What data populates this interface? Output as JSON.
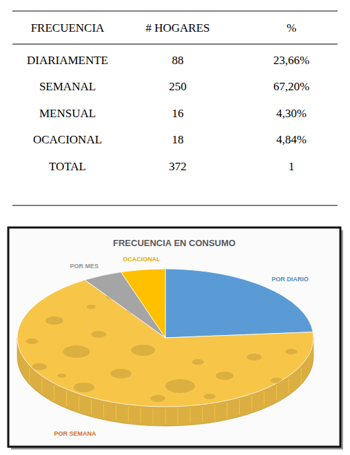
{
  "table": {
    "columns": [
      "FRECUENCIA",
      "# HOGARES",
      "%"
    ],
    "rows": [
      [
        "DIARIAMENTE",
        "88",
        "23,66%"
      ],
      [
        "SEMANAL",
        "250",
        "67,20%"
      ],
      [
        "MENSUAL",
        "16",
        "4,30%"
      ],
      [
        "OCACIONAL",
        "18",
        "4,84%"
      ],
      [
        "TOTAL",
        "372",
        "1"
      ]
    ]
  },
  "chart_data": {
    "type": "pie",
    "title": "FRECUENCIA EN CONSUMO",
    "categories": [
      "POR DIARIO",
      "POR SEMANA",
      "POR MES",
      "OCACIONAL"
    ],
    "values": [
      23.66,
      67.2,
      4.3,
      4.84
    ],
    "colors": [
      "#5b9bd5",
      "#f7c548",
      "#a5a5a5",
      "#ffc000"
    ]
  }
}
